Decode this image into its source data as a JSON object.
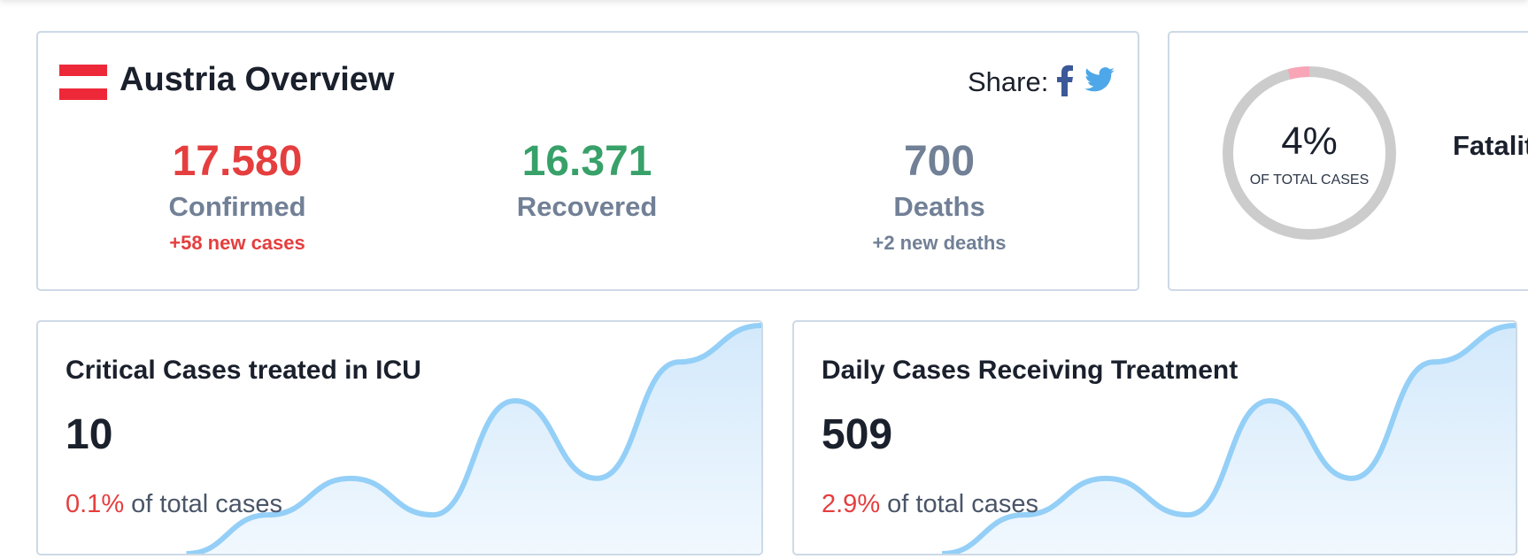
{
  "overview": {
    "title": "Austria Overview",
    "share": "Share:",
    "stats": [
      {
        "value": "17.580",
        "label": "Confirmed",
        "note": "+58 new cases"
      },
      {
        "value": "16.371",
        "label": "Recovered"
      },
      {
        "value": "700",
        "label": "Deaths",
        "note": "+2 new deaths"
      }
    ]
  },
  "fatality": {
    "percent": {
      "value": 4,
      "label": "4%"
    },
    "caption": "OF TOTAL CASES",
    "title": "Fatality Rate"
  },
  "cards": [
    {
      "title": "Critical Cases treated in ICU",
      "value": "10",
      "share": "0.1%",
      "share_text": "of total cases",
      "trend": [
        0,
        17,
        33,
        17,
        67,
        33,
        84,
        100
      ]
    },
    {
      "title": "Daily Cases Receiving Treatment",
      "value": "509",
      "share": "2.9%",
      "share_text": "of total cases",
      "trend": [
        0,
        17,
        33,
        17,
        67,
        33,
        84,
        100
      ]
    }
  ]
}
